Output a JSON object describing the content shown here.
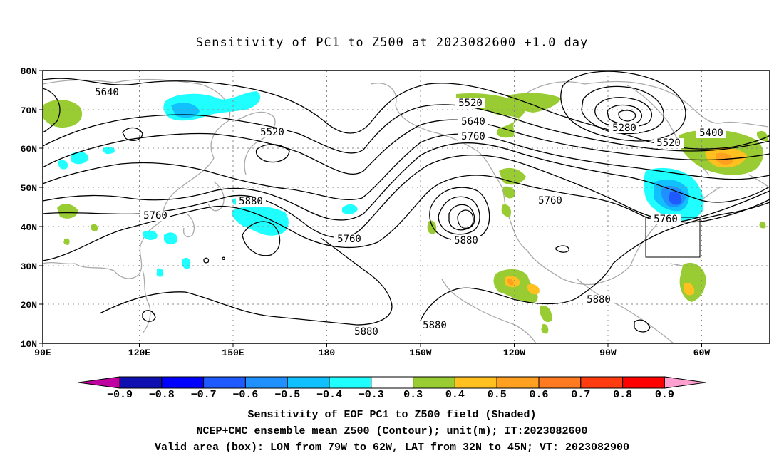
{
  "title": "Sensitivity of PC1 to Z500 at 2023082600 +1.0 day",
  "map": {
    "lat_labels": [
      "80N",
      "70N",
      "60N",
      "50N",
      "40N",
      "30N",
      "20N",
      "10N"
    ],
    "lon_labels": [
      "90E",
      "120E",
      "150E",
      "180",
      "150W",
      "120W",
      "90W",
      "60W"
    ],
    "contour_labels": [
      "5640",
      "5520",
      "5520",
      "5640",
      "5760",
      "5280",
      "5400",
      "5520",
      "5880",
      "5760",
      "5760",
      "5880",
      "5760",
      "5760",
      "5880",
      "5880",
      "5880"
    ],
    "valid_box": {
      "lon_from": "79W",
      "lon_to": "62W",
      "lat_from": "32N",
      "lat_to": "45N"
    }
  },
  "colorbar": {
    "labels": [
      "−0.9",
      "−0.8",
      "−0.7",
      "−0.6",
      "−0.5",
      "−0.4",
      "−0.3",
      "0.3",
      "0.4",
      "0.5",
      "0.6",
      "0.7",
      "0.8",
      "0.9"
    ],
    "colors": [
      "#c000a0",
      "#1010b0",
      "#0000ff",
      "#1e5aff",
      "#2090ff",
      "#10c0ff",
      "#20ffff",
      "#ffffff",
      "#99cc33",
      "#ffc020",
      "#ffa020",
      "#ff7a20",
      "#ff3c10",
      "#ff0000",
      "#ffa0d0"
    ]
  },
  "footer": {
    "line1": "Sensitivity of EOF PC1 to Z500 field (Shaded)",
    "line2": "NCEP+CMC ensemble mean Z500 (Contour); unit(m); IT:2023082600",
    "line3": "Valid area (box): LON from 79W to 62W, LAT from 32N to 45N; VT: 2023082900"
  }
}
